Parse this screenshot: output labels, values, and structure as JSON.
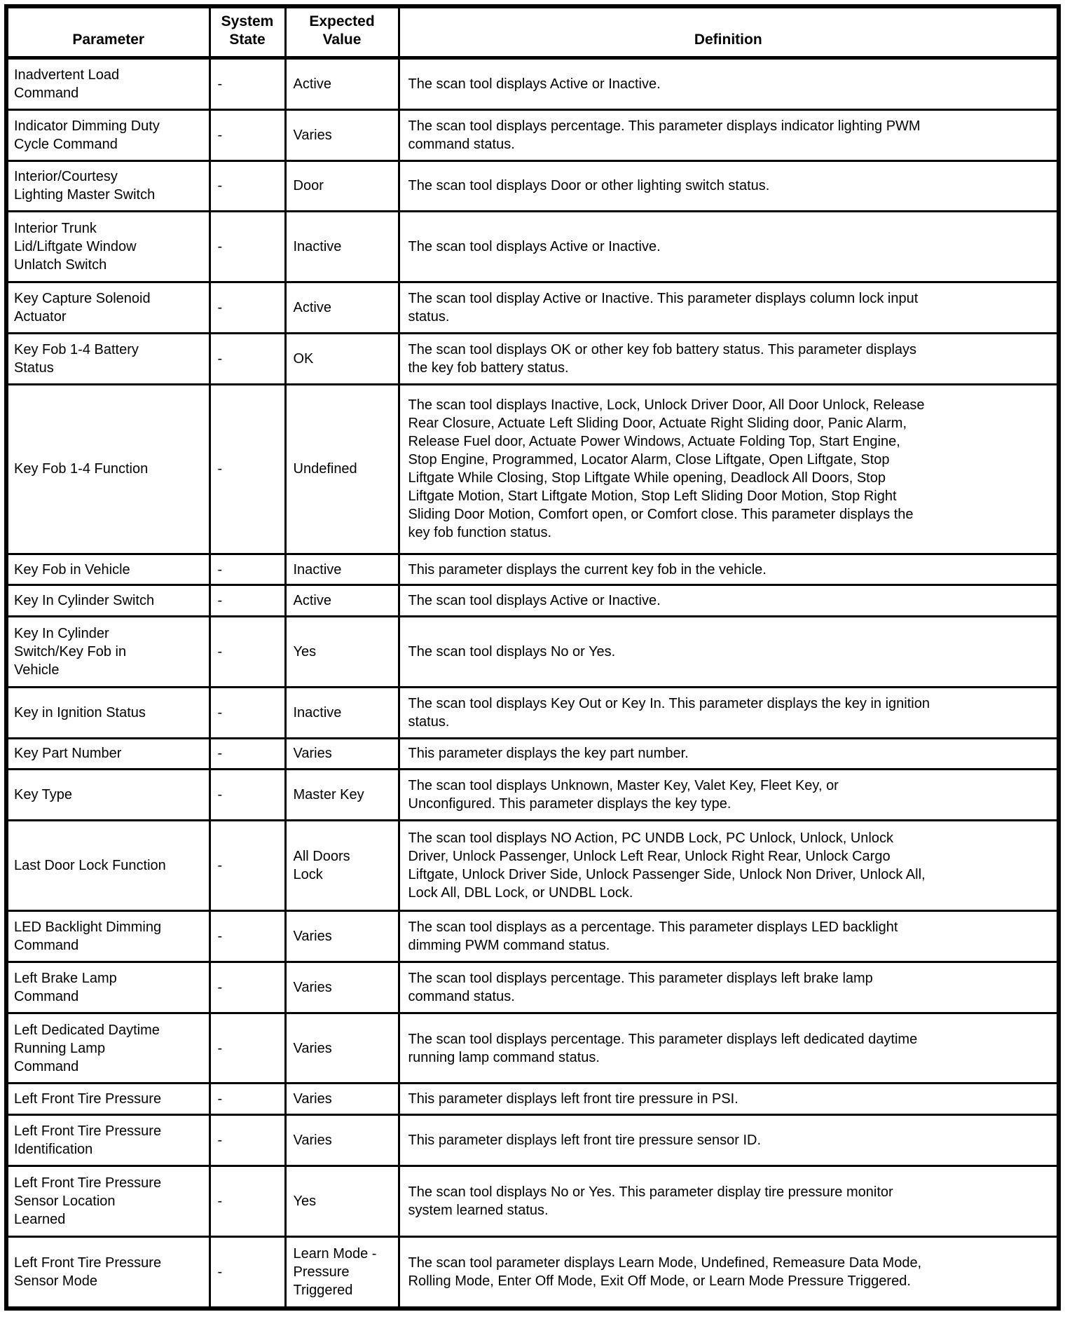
{
  "table": {
    "headers": {
      "parameter": "Parameter",
      "system_state": "System\nState",
      "expected_value": "Expected\nValue",
      "definition": "Definition"
    },
    "rows": [
      {
        "parameter": "Inadvertent Load\nCommand",
        "system_state": "-",
        "expected_value": "Active",
        "definition": "The scan tool displays Active or Inactive."
      },
      {
        "parameter": "Indicator Dimming Duty\nCycle Command",
        "system_state": "-",
        "expected_value": "Varies",
        "definition": "The scan tool displays percentage. This parameter displays indicator lighting PWM\ncommand status."
      },
      {
        "parameter": "Interior/Courtesy\nLighting Master Switch",
        "system_state": "-",
        "expected_value": "Door",
        "definition": "The scan tool displays Door or other lighting switch status."
      },
      {
        "parameter": "Interior Trunk\nLid/Liftgate Window\nUnlatch Switch",
        "system_state": "-",
        "expected_value": "Inactive",
        "definition": "The scan tool displays Active or Inactive."
      },
      {
        "parameter": "Key Capture Solenoid\nActuator",
        "system_state": "-",
        "expected_value": "Active",
        "definition": "The scan tool display Active or Inactive. This parameter displays column lock input\nstatus."
      },
      {
        "parameter": "Key Fob 1-4 Battery\nStatus",
        "system_state": "-",
        "expected_value": "OK",
        "definition": "The scan tool displays OK or other key fob battery status. This parameter displays\nthe key fob battery status."
      },
      {
        "parameter": "Key Fob 1-4 Function",
        "system_state": "-",
        "expected_value": "Undefined",
        "definition": "The scan tool displays Inactive, Lock, Unlock Driver Door, All Door Unlock, Release\nRear Closure, Actuate Left Sliding Door, Actuate Right Sliding door, Panic Alarm,\nRelease Fuel door, Actuate Power Windows, Actuate Folding Top, Start Engine,\nStop Engine, Programmed, Locator Alarm, Close Liftgate, Open Liftgate, Stop\nLiftgate While Closing, Stop Liftgate While opening, Deadlock All Doors, Stop\nLiftgate Motion, Start Liftgate Motion, Stop Left Sliding Door Motion, Stop Right\nSliding Door Motion, Comfort open, or Comfort close. This parameter displays the\nkey fob function status."
      },
      {
        "parameter": "Key Fob in Vehicle",
        "system_state": "-",
        "expected_value": "Inactive",
        "definition": "This parameter displays the current key fob in the vehicle."
      },
      {
        "parameter": "Key In Cylinder Switch",
        "system_state": "-",
        "expected_value": "Active",
        "definition": "The scan tool displays Active or Inactive."
      },
      {
        "parameter": "Key In Cylinder\nSwitch/Key Fob in\nVehicle",
        "system_state": "-",
        "expected_value": "Yes",
        "definition": "The scan tool displays No or Yes."
      },
      {
        "parameter": "Key in Ignition Status",
        "system_state": "-",
        "expected_value": "Inactive",
        "definition": "The scan tool displays Key Out or Key In. This parameter displays the key in ignition\nstatus."
      },
      {
        "parameter": "Key Part Number",
        "system_state": "-",
        "expected_value": "Varies",
        "definition": "This parameter displays the key part number."
      },
      {
        "parameter": "Key Type",
        "system_state": "-",
        "expected_value": "Master Key",
        "definition": "The scan tool displays Unknown, Master Key, Valet Key, Fleet Key, or\nUnconfigured. This parameter displays the key type."
      },
      {
        "parameter": "Last Door Lock Function",
        "system_state": "-",
        "expected_value": "All Doors\nLock",
        "definition": "The scan tool displays NO Action, PC UNDB Lock, PC Unlock, Unlock, Unlock\nDriver, Unlock Passenger, Unlock Left Rear, Unlock Right Rear, Unlock Cargo\nLiftgate, Unlock Driver Side, Unlock Passenger Side, Unlock Non Driver, Unlock All,\nLock All, DBL Lock, or UNDBL Lock."
      },
      {
        "parameter": "LED Backlight Dimming\nCommand",
        "system_state": "-",
        "expected_value": "Varies",
        "definition": "The scan tool displays as a percentage. This parameter displays LED backlight\ndimming PWM command status."
      },
      {
        "parameter": "Left Brake Lamp\nCommand",
        "system_state": "-",
        "expected_value": "Varies",
        "definition": "The scan tool displays percentage. This parameter displays left brake lamp\ncommand status."
      },
      {
        "parameter": "Left Dedicated Daytime\nRunning Lamp\nCommand",
        "system_state": "-",
        "expected_value": "Varies",
        "definition": "The scan tool displays percentage. This parameter displays left dedicated daytime\nrunning lamp command status."
      },
      {
        "parameter": "Left Front Tire Pressure",
        "system_state": "-",
        "expected_value": "Varies",
        "definition": "This parameter displays left front tire pressure in PSI."
      },
      {
        "parameter": "Left Front Tire Pressure\nIdentification",
        "system_state": "-",
        "expected_value": "Varies",
        "definition": "This parameter displays left front tire pressure sensor ID."
      },
      {
        "parameter": "Left Front Tire Pressure\nSensor Location\nLearned",
        "system_state": "-",
        "expected_value": "Yes",
        "definition": "The scan tool displays No or Yes. This parameter display tire pressure monitor\nsystem learned status."
      },
      {
        "parameter": "Left Front Tire Pressure\nSensor Mode",
        "system_state": "-",
        "expected_value": "Learn Mode -\nPressure\nTriggered",
        "definition": "The scan tool parameter displays Learn Mode, Undefined, Remeasure Data Mode,\nRolling Mode, Enter Off Mode, Exit Off Mode, or Learn Mode Pressure Triggered."
      }
    ]
  }
}
